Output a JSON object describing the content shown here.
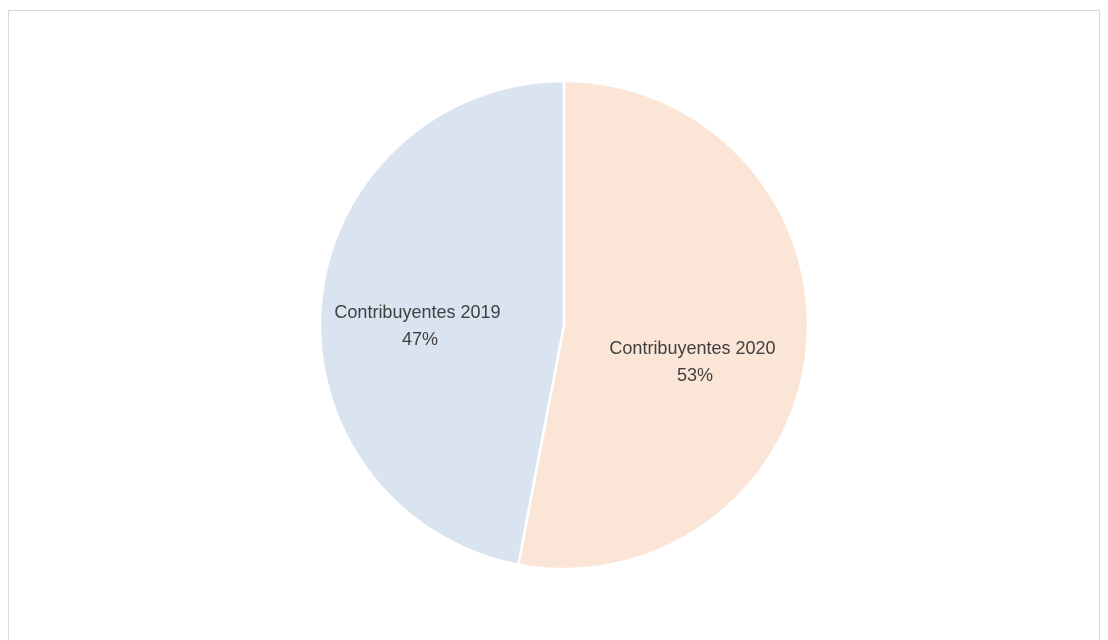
{
  "chart_data": {
    "type": "pie",
    "title": "",
    "slices": [
      {
        "label": "Contribuyentes 2020",
        "value": 53,
        "percent_label": "53%",
        "color": "#fbe5d6"
      },
      {
        "label": "Contribuyentes 2019",
        "value": 47,
        "percent_label": "47%",
        "color": "#dae3f0"
      }
    ],
    "legend": "none",
    "slice_border_color": "#ffffff"
  }
}
